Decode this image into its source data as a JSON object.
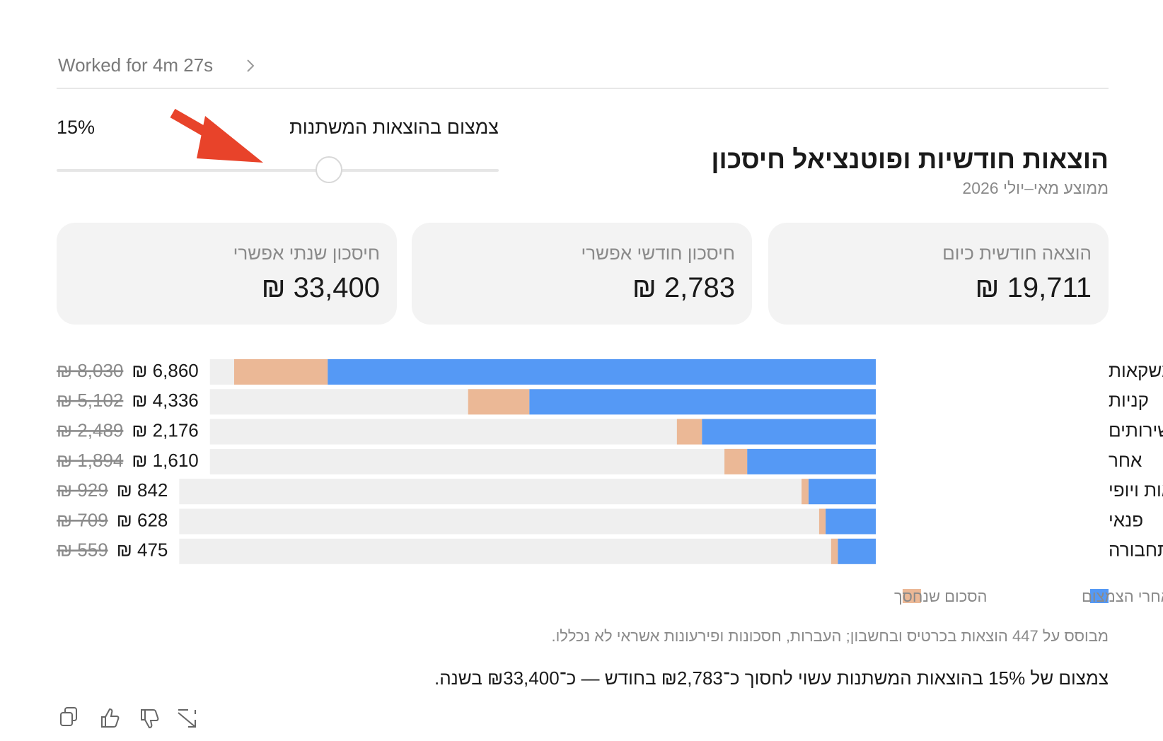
{
  "header": {
    "status": "Worked for 4m 27s"
  },
  "control": {
    "label": "צמצום בהוצאות המשתנות",
    "value_label": "15%"
  },
  "title": "הוצאות חודשיות ופוטנציאל חיסכון",
  "subtitle": "ממוצע מאי–יולי 2026",
  "cards": [
    {
      "label": "הוצאה חודשית כיום",
      "value": "₪ 19,711"
    },
    {
      "label": "חיסכון חודשי אפשרי",
      "value": "₪ 2,783"
    },
    {
      "label": "חיסכון שנתי אפשרי",
      "value": "₪ 33,400"
    }
  ],
  "chart_data": {
    "type": "bar",
    "orientation": "horizontal",
    "stacked": true,
    "categories": [
      "אוכל ומשקאות",
      "קניות",
      "בית ושירותים",
      "אחר",
      "בריאות ויופי",
      "פנאי",
      "תחבורה"
    ],
    "series": [
      {
        "name": "הוצאה אחרי הצמצום",
        "color": "#5599f5",
        "values": [
          6860,
          4336,
          2176,
          1610,
          842,
          628,
          475
        ],
        "value_labels": [
          "₪ 6,860",
          "₪ 4,336",
          "₪ 2,176",
          "₪ 1,610",
          "₪ 842",
          "₪ 628",
          "₪ 475"
        ]
      },
      {
        "name": "הסכום שנחסך",
        "color": "#ebb896",
        "values": [
          1170,
          766,
          313,
          284,
          87,
          81,
          84
        ]
      }
    ],
    "before_labels": [
      "₪ 8,030",
      "₪ 5,102",
      "₪ 2,489",
      "₪ 1,894",
      "₪ 929",
      "₪ 709",
      "₪ 559"
    ]
  },
  "footnote": "מבוסס על 447 הוצאות בכרטיס ובחשבון; העברות, חסכונות ופירעונות אשראי לא נכללו.",
  "summary": "צמצום של 15% בהוצאות המשתנות עשוי לחסוך כ־₪2,783 בחודש — כ־₪33,400 בשנה."
}
